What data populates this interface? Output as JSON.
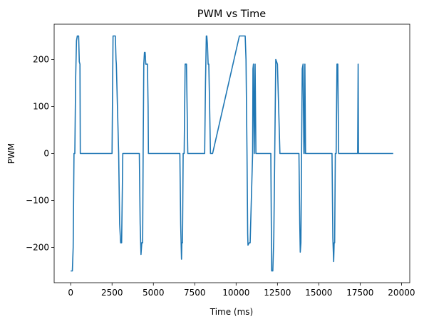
{
  "chart_data": {
    "type": "line",
    "title": "PWM vs Time",
    "xlabel": "Time (ms)",
    "ylabel": "PWM",
    "xlim": [
      -1000,
      20500
    ],
    "ylim": [
      -275,
      275
    ],
    "x_ticks": [
      0,
      2500,
      5000,
      7500,
      10000,
      12500,
      15000,
      17500,
      20000
    ],
    "x_tick_labels": [
      "0",
      "2500",
      "5000",
      "7500",
      "10000",
      "12500",
      "15000",
      "17500",
      "20000"
    ],
    "y_ticks": [
      -200,
      -100,
      0,
      100,
      200
    ],
    "y_tick_labels": [
      "−200",
      "−100",
      "0",
      "100",
      "200"
    ],
    "grid": false,
    "line_color": "#1f77b4",
    "series": [
      {
        "x": [
          0,
          100,
          150,
          200,
          250,
          300,
          350,
          400,
          480,
          520,
          560,
          580,
          2500,
          2560,
          2620,
          2700,
          2740,
          2760,
          2900,
          2960,
          3020,
          3080,
          3150,
          4150,
          4200,
          4250,
          4300,
          4350,
          4380,
          4420,
          4460,
          4500,
          4540,
          4600,
          4640,
          4680,
          4700,
          4720,
          4720,
          5500,
          6600,
          6650,
          6700,
          6720,
          6760,
          6800,
          6860,
          6920,
          6950,
          7000,
          7080,
          7120,
          7150,
          8100,
          8150,
          8200,
          8230,
          8270,
          8310,
          8350,
          8400,
          8450,
          8480,
          8520,
          8560,
          8580,
          10200,
          10230,
          10550,
          10600,
          10660,
          10700,
          10720,
          10800,
          10850,
          11000,
          11020,
          11050,
          11100,
          11150,
          11200,
          12100,
          12150,
          12200,
          12220,
          12280,
          12400,
          12450,
          12500,
          12650,
          12700,
          12750,
          13800,
          13850,
          13880,
          13920,
          13960,
          14000,
          14050,
          14100,
          14120,
          14160,
          14200,
          14240,
          14260,
          15800,
          15850,
          15900,
          15930,
          15960,
          16000,
          16050,
          16100,
          16150,
          16200,
          16250,
          16260,
          17350,
          17380,
          17400,
          17420,
          19500
        ],
        "y": [
          -250,
          -250,
          -200,
          0,
          0,
          160,
          240,
          250,
          250,
          195,
          190,
          0,
          0,
          250,
          250,
          250,
          200,
          190,
          0,
          -150,
          -190,
          -190,
          0,
          0,
          -150,
          -215,
          -190,
          -190,
          0,
          190,
          215,
          215,
          190,
          190,
          190,
          100,
          0,
          0,
          0,
          0,
          0,
          -150,
          -225,
          -190,
          -190,
          0,
          0,
          190,
          190,
          190,
          0,
          0,
          0,
          0,
          150,
          250,
          250,
          230,
          190,
          190,
          100,
          0,
          0,
          0,
          0,
          0,
          250,
          250,
          250,
          200,
          0,
          -170,
          -195,
          -190,
          -190,
          0,
          180,
          190,
          0,
          190,
          0,
          0,
          -250,
          -250,
          -250,
          -180,
          200,
          195,
          190,
          0,
          0,
          0,
          0,
          -150,
          -210,
          -190,
          0,
          180,
          190,
          0,
          0,
          190,
          0,
          0,
          0,
          0,
          -180,
          -230,
          -190,
          -190,
          0,
          0,
          190,
          190,
          0,
          0,
          0,
          0,
          190,
          0,
          0,
          0
        ]
      }
    ]
  }
}
